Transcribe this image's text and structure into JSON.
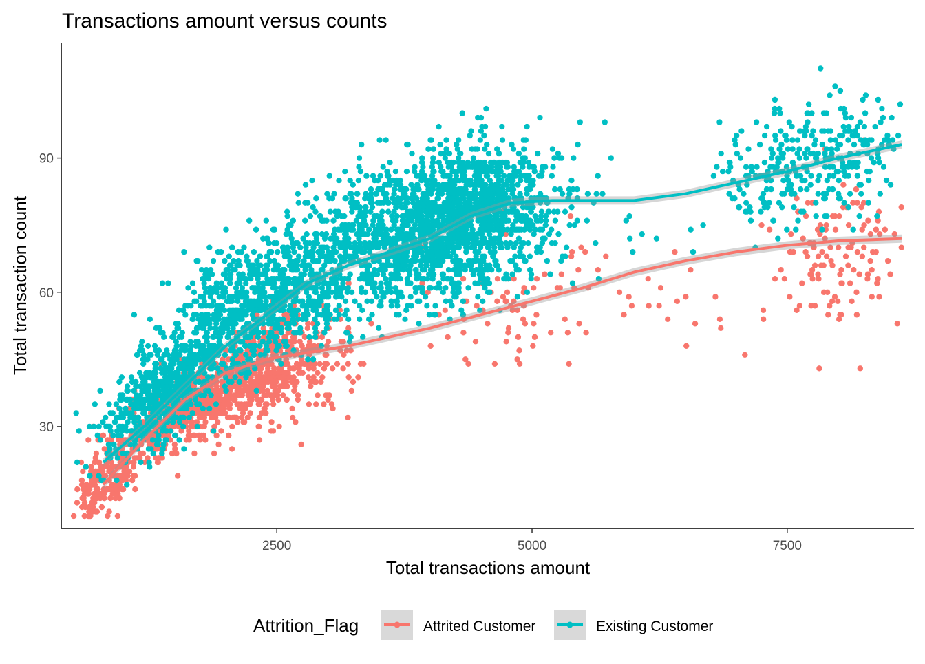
{
  "chart_data": {
    "type": "scatter",
    "title": "Transactions amount versus counts",
    "xlabel": "Total transactions amount",
    "ylabel": "Total transaction count",
    "xlim": [
      510,
      8620
    ],
    "ylim": [
      10,
      113
    ],
    "xticks": [
      2500,
      5000,
      7500
    ],
    "yticks": [
      30,
      60,
      90
    ],
    "grid": false,
    "legend": {
      "title": "Attrition_Flag",
      "placement": "bottom"
    },
    "series": [
      {
        "name": "Attrited Customer",
        "color": "#F8766D",
        "smooth": [
          [
            800,
            17
          ],
          [
            1200,
            27
          ],
          [
            1600,
            36
          ],
          [
            2000,
            42
          ],
          [
            2400,
            45
          ],
          [
            2800,
            46.5
          ],
          [
            3200,
            48
          ],
          [
            3600,
            50
          ],
          [
            4000,
            52
          ],
          [
            4500,
            55
          ],
          [
            5000,
            58
          ],
          [
            5500,
            61
          ],
          [
            6000,
            64.5
          ],
          [
            6500,
            67
          ],
          [
            7000,
            69
          ],
          [
            7500,
            70.5
          ],
          [
            8000,
            71.5
          ],
          [
            8620,
            72
          ]
        ],
        "clusters": [
          {
            "cx": 800,
            "cy": 18,
            "sx": 170,
            "sy": 5,
            "n": 200,
            "corr": 0.6
          },
          {
            "cx": 1600,
            "cy": 34,
            "sx": 350,
            "sy": 6,
            "n": 450,
            "corr": 0.7
          },
          {
            "cx": 2350,
            "cy": 42,
            "sx": 300,
            "sy": 6,
            "n": 500,
            "corr": 0.5
          },
          {
            "cx": 2950,
            "cy": 44,
            "sx": 250,
            "sy": 7,
            "n": 60,
            "corr": 0.3
          },
          {
            "cx": 4800,
            "cy": 57,
            "sx": 450,
            "sy": 8,
            "n": 70,
            "corr": 0
          },
          {
            "cx": 6300,
            "cy": 60,
            "sx": 550,
            "sy": 8,
            "n": 25,
            "corr": 0
          },
          {
            "cx": 8000,
            "cy": 67,
            "sx": 380,
            "sy": 8,
            "n": 130,
            "corr": 0
          }
        ]
      },
      {
        "name": "Existing Customer",
        "color": "#00BFC4",
        "smooth": [
          [
            800,
            22
          ],
          [
            1200,
            30
          ],
          [
            1600,
            39
          ],
          [
            2000,
            48
          ],
          [
            2400,
            55
          ],
          [
            2800,
            62
          ],
          [
            3200,
            66
          ],
          [
            3600,
            69
          ],
          [
            4000,
            72
          ],
          [
            4400,
            77
          ],
          [
            4800,
            80
          ],
          [
            5200,
            80.5
          ],
          [
            5600,
            80.5
          ],
          [
            6000,
            80.5
          ],
          [
            6500,
            82
          ],
          [
            7000,
            84.5
          ],
          [
            7500,
            87
          ],
          [
            8000,
            90
          ],
          [
            8620,
            93
          ]
        ],
        "clusters": [
          {
            "cx": 1350,
            "cy": 36,
            "sx": 300,
            "sy": 7,
            "n": 500,
            "corr": 0.6
          },
          {
            "cx": 2050,
            "cy": 54,
            "sx": 350,
            "sy": 8,
            "n": 600,
            "corr": 0.4
          },
          {
            "cx": 2800,
            "cy": 64,
            "sx": 300,
            "sy": 8,
            "n": 450,
            "corr": 0.3
          },
          {
            "cx": 3900,
            "cy": 73,
            "sx": 450,
            "sy": 8,
            "n": 1100,
            "corr": 0.2
          },
          {
            "cx": 4550,
            "cy": 79,
            "sx": 350,
            "sy": 7,
            "n": 700,
            "corr": 0.1
          },
          {
            "cx": 5400,
            "cy": 78,
            "sx": 450,
            "sy": 9,
            "n": 40,
            "corr": 0
          },
          {
            "cx": 7750,
            "cy": 89,
            "sx": 450,
            "sy": 7,
            "n": 320,
            "corr": 0.2
          }
        ]
      }
    ]
  }
}
